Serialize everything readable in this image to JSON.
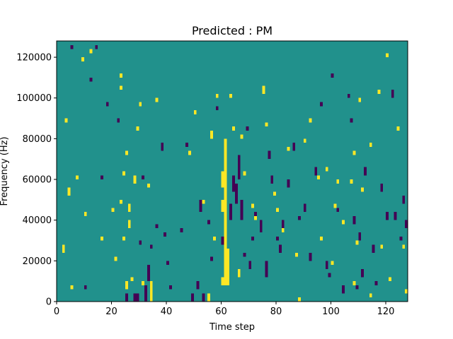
{
  "chart_data": {
    "type": "heatmap",
    "title": "Predicted : PM",
    "xlabel": "Time step",
    "ylabel": "Frequency (Hz)",
    "xlim": [
      0,
      128
    ],
    "ylim": [
      0,
      128000
    ],
    "xticks": [
      0,
      20,
      40,
      60,
      80,
      100,
      120
    ],
    "yticks": [
      0,
      20000,
      40000,
      60000,
      80000,
      100000,
      120000
    ],
    "grid": false,
    "colormap": "viridis",
    "colors": {
      "background": "#21918c",
      "low": "#440154",
      "high": "#fde725",
      "axis": "#000000"
    },
    "bin_width_hz": 2000,
    "cells_high": [
      [
        2,
        24000,
        28000
      ],
      [
        3,
        88000,
        90000
      ],
      [
        4,
        52000,
        56000
      ],
      [
        5,
        6000,
        8000
      ],
      [
        7,
        60000,
        62000
      ],
      [
        9,
        118000,
        120000
      ],
      [
        10,
        42000,
        44000
      ],
      [
        12,
        122000,
        124000
      ],
      [
        16,
        30000,
        32000
      ],
      [
        20,
        44000,
        46000
      ],
      [
        21,
        20000,
        22000
      ],
      [
        23,
        110000,
        112000
      ],
      [
        23,
        104000,
        106000
      ],
      [
        23,
        48000,
        50000
      ],
      [
        24,
        62000,
        64000
      ],
      [
        24,
        30000,
        32000
      ],
      [
        25,
        72000,
        74000
      ],
      [
        25,
        6000,
        10000
      ],
      [
        26,
        44000,
        48000
      ],
      [
        26,
        36000,
        40000
      ],
      [
        27,
        10000,
        12000
      ],
      [
        28,
        58000,
        62000
      ],
      [
        29,
        84000,
        86000
      ],
      [
        30,
        96000,
        98000
      ],
      [
        31,
        8000,
        10000
      ],
      [
        33,
        56000,
        58000
      ],
      [
        34,
        0,
        10000
      ],
      [
        36,
        98000,
        100000
      ],
      [
        48,
        72000,
        74000
      ],
      [
        50,
        92000,
        94000
      ],
      [
        53,
        48000,
        50000
      ],
      [
        55,
        0,
        4000
      ],
      [
        56,
        80000,
        84000
      ],
      [
        57,
        30000,
        32000
      ],
      [
        58,
        100000,
        102000
      ],
      [
        60,
        8000,
        12000
      ],
      [
        60,
        44000,
        50000
      ],
      [
        60,
        56000,
        64000
      ],
      [
        61,
        8000,
        80000
      ],
      [
        62,
        8000,
        26000
      ],
      [
        63,
        100000,
        102000
      ],
      [
        64,
        84000,
        86000
      ],
      [
        66,
        12000,
        16000
      ],
      [
        67,
        80000,
        82000
      ],
      [
        68,
        62000,
        64000
      ],
      [
        71,
        46000,
        48000
      ],
      [
        72,
        40000,
        42000
      ],
      [
        75,
        102000,
        104000
      ],
      [
        75,
        104000,
        106000
      ],
      [
        76,
        86000,
        88000
      ],
      [
        79,
        52000,
        54000
      ],
      [
        80,
        44000,
        46000
      ],
      [
        82,
        34000,
        36000
      ],
      [
        84,
        74000,
        76000
      ],
      [
        87,
        22000,
        24000
      ],
      [
        88,
        0,
        2000
      ],
      [
        90,
        78000,
        80000
      ],
      [
        92,
        88000,
        90000
      ],
      [
        95,
        60000,
        62000
      ],
      [
        96,
        30000,
        32000
      ],
      [
        98,
        64000,
        66000
      ],
      [
        100,
        18000,
        20000
      ],
      [
        101,
        46000,
        48000
      ],
      [
        102,
        58000,
        60000
      ],
      [
        104,
        38000,
        40000
      ],
      [
        107,
        58000,
        60000
      ],
      [
        108,
        72000,
        74000
      ],
      [
        108,
        8000,
        10000
      ],
      [
        109,
        28000,
        30000
      ],
      [
        110,
        98000,
        100000
      ],
      [
        111,
        54000,
        56000
      ],
      [
        114,
        2000,
        4000
      ],
      [
        114,
        76000,
        78000
      ],
      [
        117,
        102000,
        104000
      ],
      [
        118,
        26000,
        28000
      ],
      [
        120,
        120000,
        122000
      ],
      [
        121,
        10000,
        12000
      ],
      [
        124,
        84000,
        86000
      ],
      [
        126,
        26000,
        28000
      ],
      [
        127,
        4000,
        6000
      ]
    ],
    "cells_low": [
      [
        5,
        124000,
        126000
      ],
      [
        10,
        6000,
        8000
      ],
      [
        12,
        108000,
        110000
      ],
      [
        14,
        124000,
        126000
      ],
      [
        16,
        60000,
        62000
      ],
      [
        18,
        96000,
        98000
      ],
      [
        22,
        88000,
        90000
      ],
      [
        25,
        0,
        4000
      ],
      [
        27,
        10000,
        12000
      ],
      [
        28,
        0,
        4000
      ],
      [
        29,
        0,
        4000
      ],
      [
        30,
        28000,
        30000
      ],
      [
        31,
        60000,
        62000
      ],
      [
        32,
        0,
        8000
      ],
      [
        33,
        10000,
        18000
      ],
      [
        34,
        26000,
        28000
      ],
      [
        36,
        36000,
        38000
      ],
      [
        38,
        74000,
        78000
      ],
      [
        39,
        32000,
        34000
      ],
      [
        40,
        18000,
        20000
      ],
      [
        41,
        6000,
        8000
      ],
      [
        45,
        34000,
        36000
      ],
      [
        47,
        76000,
        78000
      ],
      [
        49,
        0,
        4000
      ],
      [
        51,
        6000,
        10000
      ],
      [
        52,
        44000,
        50000
      ],
      [
        53,
        0,
        4000
      ],
      [
        55,
        38000,
        40000
      ],
      [
        56,
        20000,
        22000
      ],
      [
        58,
        94000,
        96000
      ],
      [
        60,
        28000,
        32000
      ],
      [
        61,
        50000,
        56000
      ],
      [
        63,
        40000,
        48000
      ],
      [
        64,
        54000,
        62000
      ],
      [
        65,
        48000,
        58000
      ],
      [
        66,
        60000,
        72000
      ],
      [
        67,
        40000,
        50000
      ],
      [
        68,
        22000,
        24000
      ],
      [
        69,
        84000,
        86000
      ],
      [
        70,
        16000,
        20000
      ],
      [
        71,
        30000,
        32000
      ],
      [
        72,
        40000,
        44000
      ],
      [
        74,
        34000,
        40000
      ],
      [
        76,
        12000,
        20000
      ],
      [
        77,
        70000,
        74000
      ],
      [
        78,
        58000,
        62000
      ],
      [
        80,
        30000,
        32000
      ],
      [
        81,
        24000,
        28000
      ],
      [
        82,
        36000,
        40000
      ],
      [
        84,
        56000,
        60000
      ],
      [
        86,
        74000,
        78000
      ],
      [
        88,
        40000,
        42000
      ],
      [
        90,
        44000,
        48000
      ],
      [
        92,
        20000,
        24000
      ],
      [
        94,
        62000,
        66000
      ],
      [
        96,
        96000,
        98000
      ],
      [
        98,
        16000,
        20000
      ],
      [
        99,
        12000,
        14000
      ],
      [
        100,
        110000,
        112000
      ],
      [
        102,
        44000,
        46000
      ],
      [
        104,
        4000,
        8000
      ],
      [
        106,
        100000,
        102000
      ],
      [
        107,
        88000,
        90000
      ],
      [
        108,
        38000,
        42000
      ],
      [
        109,
        6000,
        8000
      ],
      [
        110,
        30000,
        34000
      ],
      [
        111,
        12000,
        16000
      ],
      [
        112,
        62000,
        66000
      ],
      [
        115,
        24000,
        28000
      ],
      [
        116,
        8000,
        10000
      ],
      [
        118,
        54000,
        58000
      ],
      [
        120,
        40000,
        44000
      ],
      [
        122,
        100000,
        104000
      ],
      [
        123,
        40000,
        44000
      ],
      [
        125,
        30000,
        32000
      ],
      [
        126,
        48000,
        52000
      ],
      [
        127,
        36000,
        40000
      ]
    ]
  }
}
